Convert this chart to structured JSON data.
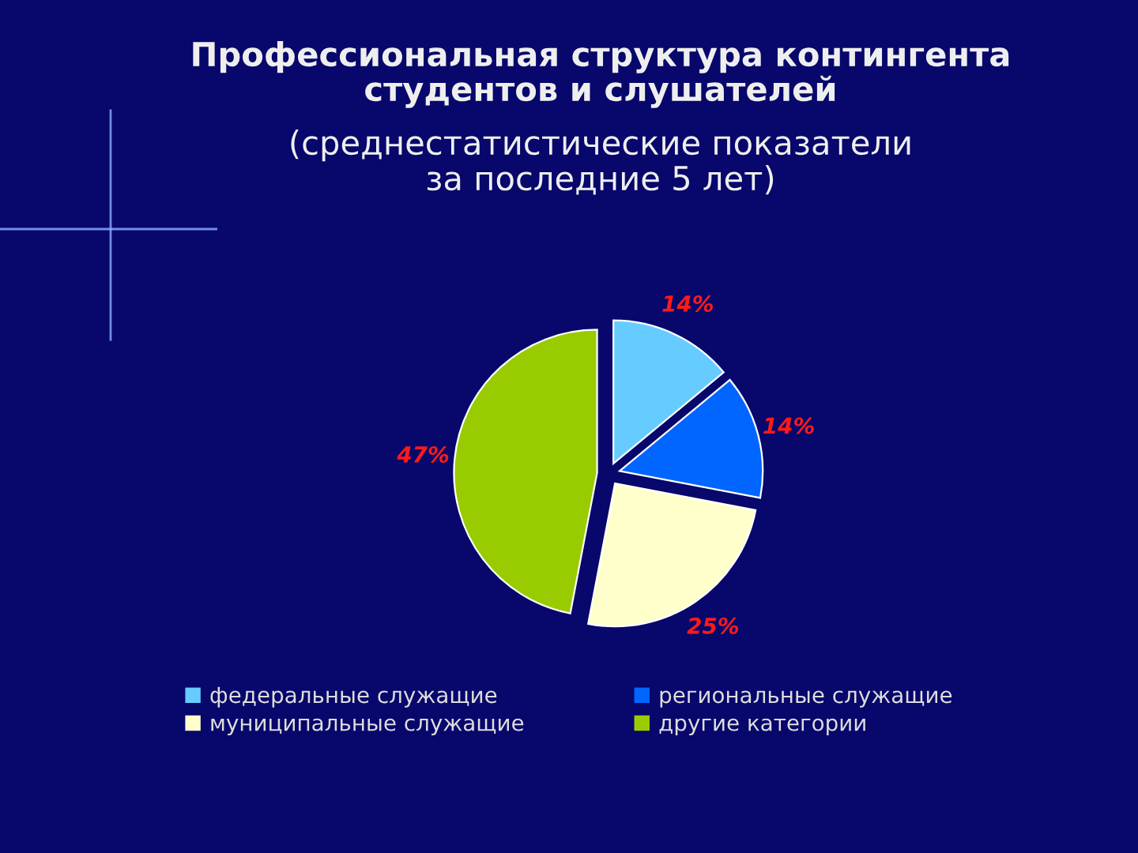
{
  "chart_data": {
    "type": "pie",
    "title": "Профессиональная структура контингента\nстудентов и слушателей",
    "subtitle": "(среднестатистические показатели\nза последние 5 лет)",
    "categories": [
      "федеральные служащие",
      "региональные служащие",
      "муниципальные служащие",
      "другие категории"
    ],
    "values": [
      14,
      14,
      25,
      47
    ],
    "colors": [
      "#66ccff",
      "#0066ff",
      "#ffffcc",
      "#99cc00"
    ],
    "value_labels": [
      "14%",
      "14%",
      "25%",
      "47%"
    ],
    "legend": "bottom"
  }
}
